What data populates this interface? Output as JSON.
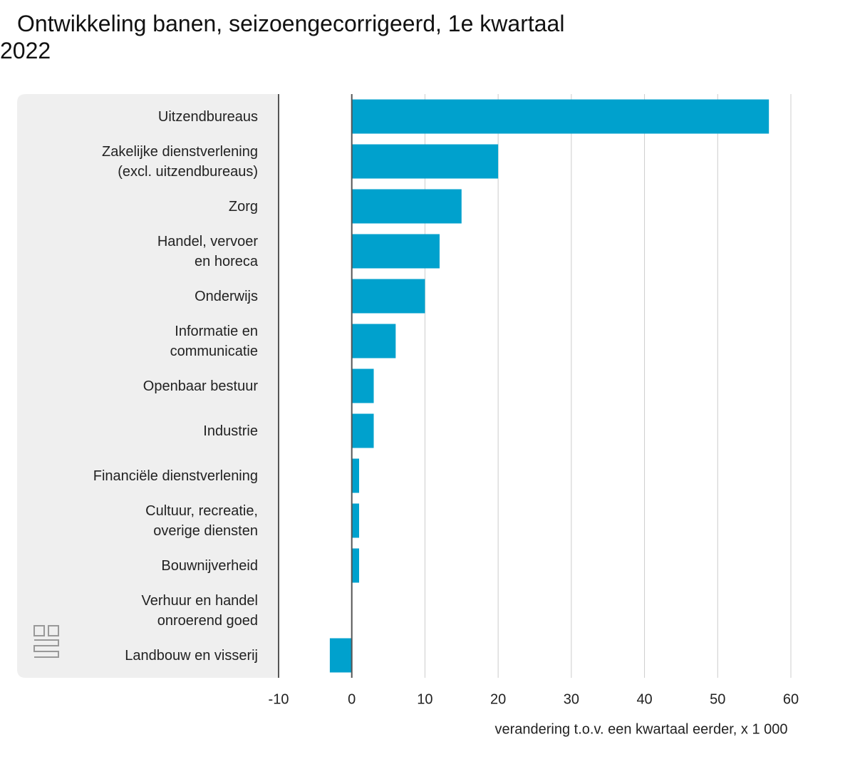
{
  "chart_data": {
    "type": "bar",
    "orientation": "horizontal",
    "title": "Ontwikkeling banen, seizoengecorrigeerd, 1e kwartaal 2022",
    "categories": [
      "Uitzendbureaus",
      "Zakelijke dienstverlening\n(excl. uitzendbureaus)",
      "Zorg",
      "Handel, vervoer\nen horeca",
      "Onderwijs",
      "Informatie en\ncommunicatie",
      "Openbaar bestuur",
      "Industrie",
      "Financiële dienstverlening",
      "Cultuur, recreatie,\noverige diensten",
      "Bouwnijverheid",
      "Verhuur en handel\nonroerend goed",
      "Landbouw en visserij"
    ],
    "values": [
      57,
      20,
      15,
      12,
      10,
      6,
      3,
      3,
      1,
      1,
      1,
      0,
      -3
    ],
    "color": "#00a1cd",
    "xlim": [
      -10,
      60
    ],
    "xticks": [
      -10,
      0,
      10,
      20,
      30,
      40,
      50,
      60
    ],
    "grid": true,
    "x_label": "verandering t.o.v. een kwartaal eerder, x 1 000"
  }
}
